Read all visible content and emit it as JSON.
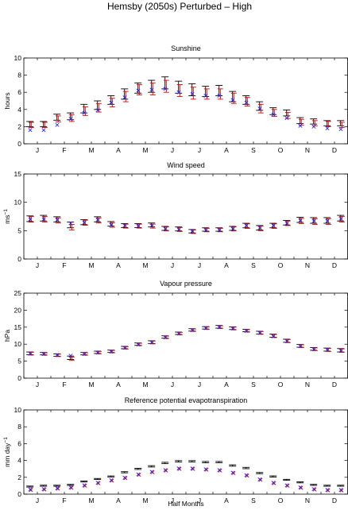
{
  "figure_title": "Hemsby (2050s) Perturbed – High",
  "colors": {
    "black": "#000000",
    "red": "#e00000",
    "blue": "#2a2af0"
  },
  "chart_data": [
    {
      "type": "scatter",
      "title": "Sunshine",
      "ylabel": "hours",
      "ylabel_sup": "",
      "ylim": [
        0,
        10
      ],
      "yticks": [
        0,
        2,
        4,
        6,
        8,
        10
      ],
      "xlabel": "",
      "xtick_labels": [
        "J",
        "F",
        "M",
        "A",
        "M",
        "J",
        "J",
        "A",
        "S",
        "O",
        "N",
        "D"
      ],
      "x": [
        1,
        2,
        3,
        4,
        5,
        6,
        7,
        8,
        9,
        10,
        11,
        12,
        13,
        14,
        15,
        16,
        17,
        18,
        19,
        20,
        21,
        22,
        23,
        24
      ],
      "series": [
        {
          "kind": "black_errorbar",
          "center": [
            2.3,
            2.3,
            3.1,
            3.2,
            4.1,
            4.5,
            5.1,
            5.8,
            6.5,
            6.7,
            7.1,
            6.6,
            6.3,
            6.1,
            6.2,
            5.5,
            5.1,
            4.4,
            3.8,
            3.6,
            2.7,
            2.6,
            2.4,
            2.4
          ],
          "half": [
            0.3,
            0.3,
            0.35,
            0.4,
            0.5,
            0.5,
            0.5,
            0.6,
            0.6,
            0.7,
            0.7,
            0.7,
            0.7,
            0.6,
            0.6,
            0.6,
            0.5,
            0.5,
            0.4,
            0.35,
            0.35,
            0.3,
            0.3,
            0.3
          ]
        },
        {
          "kind": "red_errorbar",
          "center": [
            2.2,
            2.2,
            2.9,
            3.0,
            3.8,
            4.2,
            4.8,
            5.5,
            6.3,
            6.4,
            6.7,
            6.2,
            5.9,
            5.8,
            5.8,
            5.3,
            4.9,
            4.1,
            3.6,
            3.3,
            2.5,
            2.4,
            2.3,
            2.2
          ],
          "half": [
            0.3,
            0.3,
            0.35,
            0.4,
            0.5,
            0.5,
            0.5,
            0.6,
            0.6,
            0.7,
            0.7,
            0.7,
            0.7,
            0.6,
            0.6,
            0.6,
            0.5,
            0.5,
            0.4,
            0.35,
            0.35,
            0.3,
            0.3,
            0.3
          ]
        },
        {
          "kind": "blue_x",
          "values": [
            1.6,
            1.6,
            2.2,
            2.9,
            3.6,
            3.9,
            4.8,
            5.4,
            6.2,
            6.3,
            6.4,
            6.0,
            5.8,
            5.6,
            5.6,
            5.1,
            4.8,
            4.1,
            3.4,
            3.0,
            2.1,
            2.0,
            1.8,
            1.7
          ]
        }
      ]
    },
    {
      "type": "scatter",
      "title": "Wind speed",
      "ylabel": "ms",
      "ylabel_sup": "−1",
      "ylim": [
        0,
        15
      ],
      "yticks": [
        0,
        5,
        10,
        15
      ],
      "xlabel": "",
      "xtick_labels": [
        "J",
        "F",
        "M",
        "A",
        "M",
        "J",
        "J",
        "A",
        "S",
        "O",
        "N",
        "D"
      ],
      "x": [
        1,
        2,
        3,
        4,
        5,
        6,
        7,
        8,
        9,
        10,
        11,
        12,
        13,
        14,
        15,
        16,
        17,
        18,
        19,
        20,
        21,
        22,
        23,
        24
      ],
      "series": [
        {
          "kind": "black_errorbar",
          "center": [
            7.1,
            7.2,
            7.0,
            6.0,
            6.5,
            7.0,
            6.2,
            5.9,
            5.9,
            6.0,
            5.4,
            5.3,
            4.9,
            5.2,
            5.2,
            5.4,
            5.9,
            5.5,
            5.9,
            6.4,
            6.9,
            6.8,
            6.8,
            7.2
          ],
          "half": [
            0.5,
            0.5,
            0.45,
            0.5,
            0.45,
            0.45,
            0.4,
            0.35,
            0.35,
            0.35,
            0.35,
            0.35,
            0.3,
            0.3,
            0.3,
            0.35,
            0.4,
            0.4,
            0.4,
            0.4,
            0.45,
            0.5,
            0.5,
            0.5
          ]
        },
        {
          "kind": "red_errorbar",
          "center": [
            7.0,
            7.0,
            6.8,
            5.6,
            6.4,
            6.8,
            6.0,
            5.8,
            5.8,
            5.8,
            5.3,
            5.2,
            4.8,
            5.1,
            5.1,
            5.3,
            5.8,
            5.4,
            5.8,
            6.3,
            6.7,
            6.6,
            6.6,
            7.0
          ],
          "half": [
            0.5,
            0.5,
            0.45,
            0.5,
            0.45,
            0.45,
            0.4,
            0.35,
            0.35,
            0.35,
            0.35,
            0.35,
            0.3,
            0.3,
            0.3,
            0.35,
            0.4,
            0.4,
            0.4,
            0.4,
            0.45,
            0.5,
            0.5,
            0.5
          ]
        },
        {
          "kind": "blue_x",
          "values": [
            7.0,
            7.0,
            6.9,
            6.3,
            6.4,
            6.9,
            6.0,
            5.9,
            5.8,
            5.9,
            5.3,
            5.2,
            4.9,
            5.1,
            5.1,
            5.3,
            5.9,
            5.5,
            5.9,
            6.3,
            6.8,
            6.7,
            6.7,
            7.1
          ]
        }
      ]
    },
    {
      "type": "scatter",
      "title": "Vapour pressure",
      "ylabel": "hPa",
      "ylabel_sup": "",
      "ylim": [
        0,
        25
      ],
      "yticks": [
        0,
        5,
        10,
        15,
        20,
        25
      ],
      "xlabel": "",
      "xtick_labels": [
        "J",
        "F",
        "M",
        "A",
        "M",
        "J",
        "J",
        "A",
        "S",
        "O",
        "N",
        "D"
      ],
      "x": [
        1,
        2,
        3,
        4,
        5,
        6,
        7,
        8,
        9,
        10,
        11,
        12,
        13,
        14,
        15,
        16,
        17,
        18,
        19,
        20,
        21,
        22,
        23,
        24
      ],
      "series": [
        {
          "kind": "black_errorbar",
          "center": [
            7.3,
            7.2,
            6.8,
            6.0,
            7.2,
            7.6,
            7.9,
            9.0,
            10.0,
            10.6,
            12.1,
            13.2,
            14.2,
            14.8,
            15.1,
            14.7,
            14.0,
            13.4,
            12.5,
            11.0,
            9.5,
            8.6,
            8.4,
            8.2
          ],
          "half": [
            0.4,
            0.35,
            0.35,
            0.5,
            0.35,
            0.35,
            0.35,
            0.35,
            0.35,
            0.4,
            0.35,
            0.35,
            0.35,
            0.35,
            0.4,
            0.4,
            0.35,
            0.4,
            0.45,
            0.45,
            0.4,
            0.4,
            0.45,
            0.5
          ]
        },
        {
          "kind": "red_errorbar",
          "center": [
            7.2,
            7.1,
            6.7,
            5.7,
            7.1,
            7.5,
            7.8,
            8.9,
            9.9,
            10.5,
            12.0,
            13.1,
            14.1,
            14.7,
            15.0,
            14.6,
            13.9,
            13.3,
            12.4,
            10.9,
            9.4,
            8.5,
            8.3,
            8.1
          ],
          "half": [
            0.4,
            0.35,
            0.35,
            0.5,
            0.35,
            0.35,
            0.35,
            0.35,
            0.35,
            0.4,
            0.35,
            0.35,
            0.35,
            0.35,
            0.4,
            0.4,
            0.35,
            0.4,
            0.45,
            0.45,
            0.4,
            0.4,
            0.45,
            0.5
          ]
        },
        {
          "kind": "blue_x",
          "values": [
            7.2,
            7.1,
            6.8,
            6.6,
            7.1,
            7.5,
            7.8,
            8.9,
            9.9,
            10.5,
            12.0,
            13.1,
            14.1,
            14.7,
            15.0,
            14.6,
            13.9,
            13.3,
            12.3,
            10.9,
            9.4,
            8.5,
            8.3,
            8.1
          ]
        }
      ]
    },
    {
      "type": "scatter",
      "title": "Reference potential evapotranspiration",
      "ylabel": "mm day",
      "ylabel_sup": "−1",
      "ylim": [
        0,
        10
      ],
      "yticks": [
        0,
        2,
        4,
        6,
        8,
        10
      ],
      "xlabel": "Half Months",
      "xtick_labels": [
        "J",
        "F",
        "M",
        "A",
        "M",
        "J",
        "J",
        "A",
        "S",
        "O",
        "N",
        "D"
      ],
      "x": [
        1,
        2,
        3,
        4,
        5,
        6,
        7,
        8,
        9,
        10,
        11,
        12,
        13,
        14,
        15,
        16,
        17,
        18,
        19,
        20,
        21,
        22,
        23,
        24
      ],
      "series": [
        {
          "kind": "black_errorbar",
          "center": [
            0.9,
            1.0,
            1.0,
            1.1,
            1.5,
            1.8,
            2.1,
            2.6,
            3.0,
            3.3,
            3.7,
            3.9,
            3.9,
            3.8,
            3.8,
            3.4,
            3.1,
            2.5,
            2.1,
            1.7,
            1.4,
            1.1,
            1.0,
            1.0
          ],
          "half": [
            0.06,
            0.06,
            0.06,
            0.06,
            0.06,
            0.06,
            0.06,
            0.07,
            0.07,
            0.08,
            0.08,
            0.08,
            0.08,
            0.08,
            0.08,
            0.08,
            0.08,
            0.07,
            0.07,
            0.06,
            0.06,
            0.06,
            0.06,
            0.06
          ]
        },
        {
          "kind": "red_x",
          "values": [
            0.5,
            0.55,
            0.65,
            0.75,
            1.0,
            1.3,
            1.6,
            1.9,
            2.3,
            2.6,
            2.8,
            3.0,
            3.0,
            2.9,
            2.8,
            2.5,
            2.2,
            1.7,
            1.3,
            1.0,
            0.75,
            0.55,
            0.45,
            0.45
          ]
        },
        {
          "kind": "blue_x",
          "values": [
            0.55,
            0.6,
            0.7,
            0.8,
            1.05,
            1.35,
            1.65,
            1.95,
            2.35,
            2.65,
            2.85,
            3.05,
            3.05,
            2.95,
            2.85,
            2.55,
            2.25,
            1.75,
            1.35,
            1.05,
            0.8,
            0.6,
            0.5,
            0.5
          ]
        }
      ]
    }
  ]
}
